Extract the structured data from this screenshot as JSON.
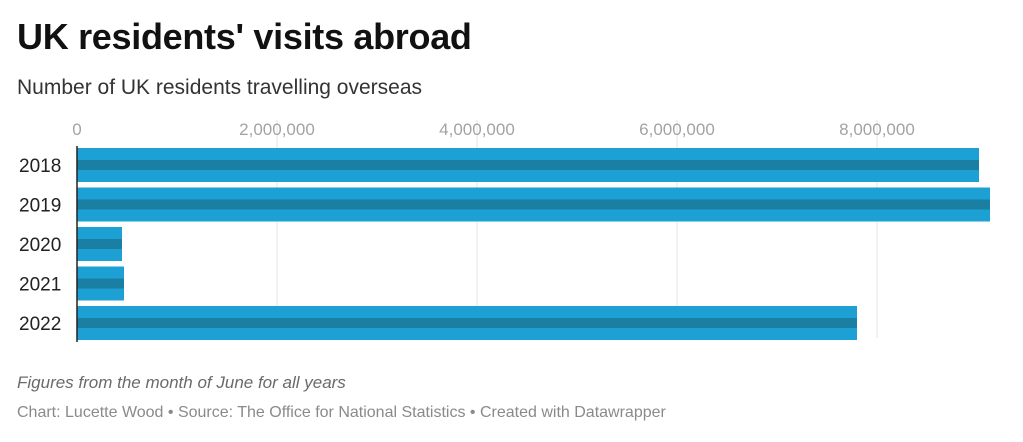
{
  "header": {
    "title": "UK residents' visits abroad",
    "subtitle": "Number of UK residents travelling overseas"
  },
  "footer": {
    "note": "Figures from the month of June for all years",
    "credits": "Chart: Lucette Wood • Source: The Office for National Statistics • Created with Datawrapper"
  },
  "colors": {
    "bar": "#1da1d4",
    "bar_stripe": "#1b7fa3",
    "grid": "#e3e3e3",
    "baseline": "#222222"
  },
  "chart_data": {
    "type": "bar",
    "orientation": "horizontal",
    "categories": [
      "2018",
      "2019",
      "2020",
      "2021",
      "2022"
    ],
    "values": [
      9020000,
      9130000,
      450000,
      470000,
      7800000
    ],
    "xlim": [
      0,
      9130000
    ],
    "xticks": [
      0,
      2000000,
      4000000,
      6000000,
      8000000
    ],
    "xtick_labels": [
      "0",
      "2,000,000",
      "4,000,000",
      "6,000,000",
      "8,000,000"
    ],
    "grid": true,
    "axis_position": "top"
  }
}
